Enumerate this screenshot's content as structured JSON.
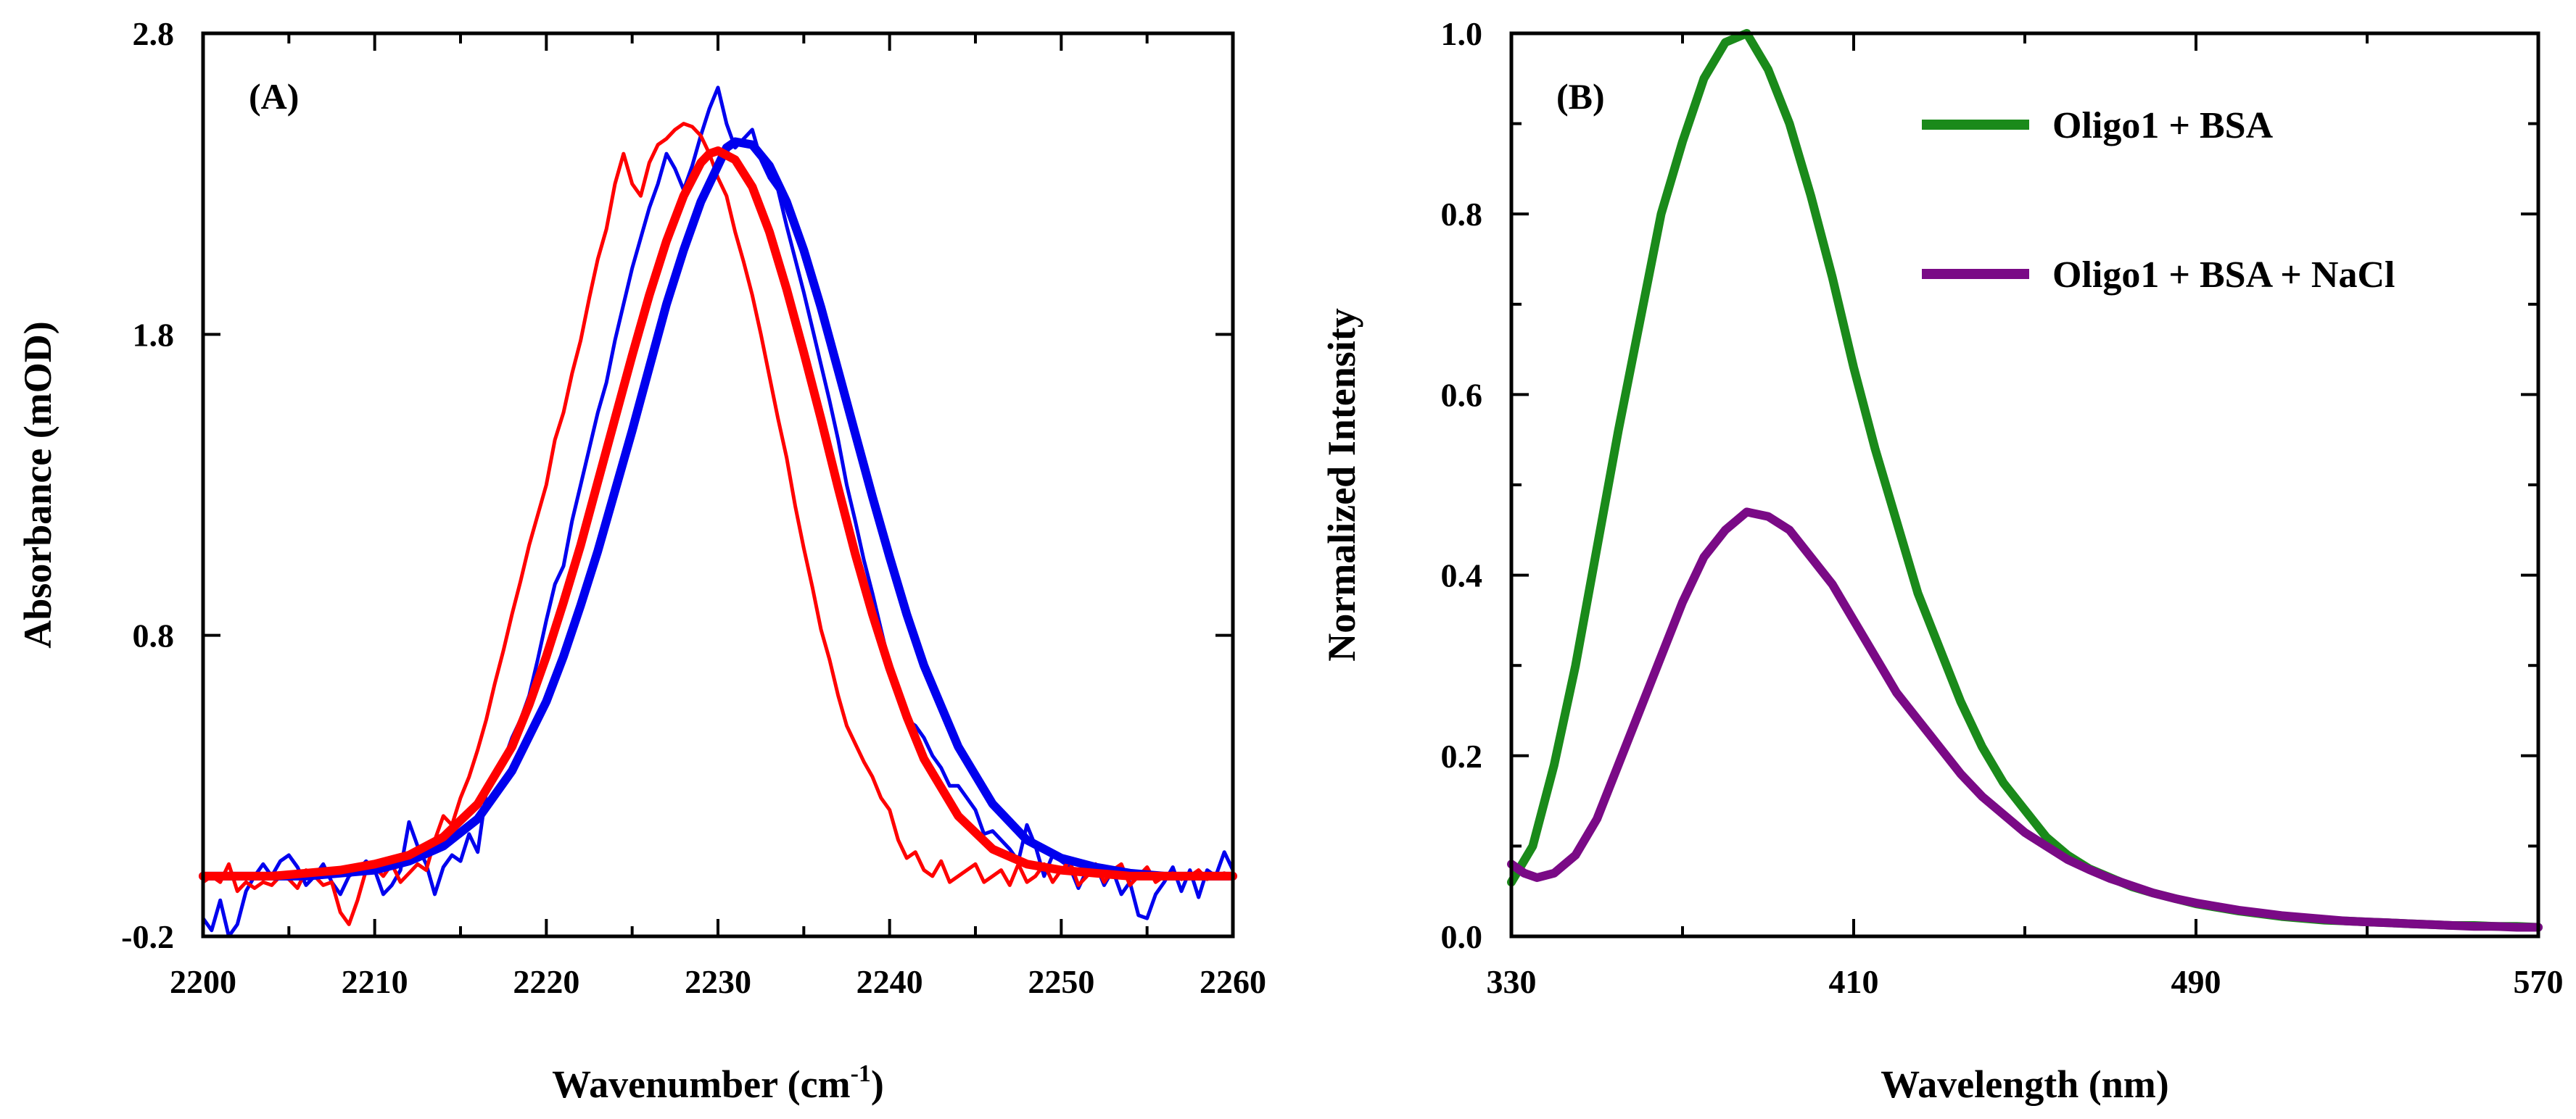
{
  "chart_data": [
    {
      "type": "line",
      "panel_label": "(A)",
      "xlabel": "Wavenumber (cm",
      "xlabel_sup": "-1",
      "xlabel_end": ")",
      "ylabel": "Absorbance (mOD)",
      "xlim": [
        2200,
        2260
      ],
      "ylim": [
        -0.2,
        2.8
      ],
      "x_ticks": [
        2200,
        2210,
        2220,
        2230,
        2240,
        2250,
        2260
      ],
      "x_tick_labels": [
        "2200",
        "2210",
        "2220",
        "2230",
        "2240",
        "2250",
        "2260"
      ],
      "y_ticks": [
        -0.2,
        0.8,
        1.8,
        2.8
      ],
      "y_tick_labels": [
        "-0.2",
        "0.8",
        "1.8",
        "2.8"
      ],
      "series": [
        {
          "name": "blue data",
          "color": "#0000ee",
          "style": "thin",
          "x": [
            2200.0,
            2200.5,
            2201.0,
            2201.5,
            2202.0,
            2202.5,
            2203.0,
            2203.5,
            2204.0,
            2204.5,
            2205.0,
            2205.5,
            2206.0,
            2206.5,
            2207.0,
            2207.5,
            2208.0,
            2208.5,
            2209.0,
            2209.5,
            2210.0,
            2210.5,
            2211.0,
            2211.5,
            2212.0,
            2212.5,
            2213.0,
            2213.5,
            2214.0,
            2214.5,
            2215.0,
            2215.5,
            2216.0,
            2216.5,
            2217.0,
            2217.5,
            2218.0,
            2218.5,
            2219.0,
            2219.5,
            2220.0,
            2220.5,
            2221.0,
            2221.5,
            2222.0,
            2222.5,
            2223.0,
            2223.5,
            2224.0,
            2224.5,
            2225.0,
            2225.5,
            2226.0,
            2226.5,
            2227.0,
            2227.5,
            2228.0,
            2228.5,
            2229.0,
            2229.5,
            2230.0,
            2230.5,
            2231.0,
            2231.5,
            2232.0,
            2232.5,
            2233.0,
            2233.5,
            2234.0,
            2234.5,
            2235.0,
            2235.5,
            2236.0,
            2236.5,
            2237.0,
            2237.5,
            2238.0,
            2238.5,
            2239.0,
            2239.5,
            2240.0,
            2240.5,
            2241.0,
            2241.5,
            2242.0,
            2242.5,
            2243.0,
            2243.5,
            2244.0,
            2244.5,
            2245.0,
            2245.5,
            2246.0,
            2246.5,
            2247.0,
            2247.5,
            2248.0,
            2248.5,
            2249.0,
            2249.5,
            2250.0,
            2250.5,
            2251.0,
            2251.5,
            2252.0,
            2252.5,
            2253.0,
            2253.5,
            2254.0,
            2254.5,
            2255.0,
            2255.5,
            2256.0,
            2256.5,
            2257.0,
            2257.5,
            2258.0,
            2258.5,
            2259.0,
            2259.5,
            2260.0
          ],
          "y": [
            -0.14,
            -0.18,
            -0.08,
            -0.2,
            -0.16,
            -0.05,
            0.0,
            0.04,
            0.0,
            0.05,
            0.07,
            0.03,
            -0.03,
            0.0,
            0.04,
            -0.02,
            -0.06,
            0.0,
            0.02,
            0.05,
            0.02,
            -0.06,
            -0.03,
            0.02,
            0.18,
            0.1,
            0.04,
            -0.06,
            0.03,
            0.07,
            0.05,
            0.14,
            0.08,
            0.28,
            0.32,
            0.38,
            0.46,
            0.52,
            0.6,
            0.72,
            0.85,
            0.97,
            1.03,
            1.18,
            1.3,
            1.42,
            1.54,
            1.64,
            1.78,
            1.9,
            2.02,
            2.12,
            2.22,
            2.3,
            2.4,
            2.35,
            2.28,
            2.36,
            2.46,
            2.55,
            2.62,
            2.5,
            2.42,
            2.45,
            2.48,
            2.38,
            2.32,
            2.28,
            2.16,
            2.05,
            1.94,
            1.82,
            1.7,
            1.58,
            1.45,
            1.3,
            1.18,
            1.05,
            0.94,
            0.82,
            0.7,
            0.6,
            0.52,
            0.5,
            0.46,
            0.4,
            0.36,
            0.3,
            0.3,
            0.26,
            0.22,
            0.14,
            0.15,
            0.12,
            0.09,
            0.05,
            0.17,
            0.1,
            0.0,
            0.07,
            0.05,
            0.03,
            -0.04,
            0.02,
            0.04,
            -0.03,
            0.02,
            -0.06,
            -0.02,
            -0.13,
            -0.14,
            -0.06,
            -0.02,
            0.03,
            -0.05,
            0.02,
            -0.07,
            0.02,
            0.0,
            0.08,
            0.02
          ]
        },
        {
          "name": "red data",
          "color": "#ff0000",
          "style": "thin",
          "x": [
            2200.0,
            2200.5,
            2201.0,
            2201.5,
            2202.0,
            2202.5,
            2203.0,
            2203.5,
            2204.0,
            2204.5,
            2205.0,
            2205.5,
            2206.0,
            2206.5,
            2207.0,
            2207.5,
            2208.0,
            2208.5,
            2209.0,
            2209.5,
            2210.0,
            2210.5,
            2211.0,
            2211.5,
            2212.0,
            2212.5,
            2213.0,
            2213.5,
            2214.0,
            2214.5,
            2215.0,
            2215.5,
            2216.0,
            2216.5,
            2217.0,
            2217.5,
            2218.0,
            2218.5,
            2219.0,
            2219.5,
            2220.0,
            2220.5,
            2221.0,
            2221.5,
            2222.0,
            2222.5,
            2223.0,
            2223.5,
            2224.0,
            2224.5,
            2225.0,
            2225.5,
            2226.0,
            2226.5,
            2227.0,
            2227.5,
            2228.0,
            2228.5,
            2229.0,
            2229.5,
            2230.0,
            2230.5,
            2231.0,
            2231.5,
            2232.0,
            2232.5,
            2233.0,
            2233.5,
            2234.0,
            2234.5,
            2235.0,
            2235.5,
            2236.0,
            2236.5,
            2237.0,
            2237.5,
            2238.0,
            2238.5,
            2239.0,
            2239.5,
            2240.0,
            2240.5,
            2241.0,
            2241.5,
            2242.0,
            2242.5,
            2243.0,
            2243.5,
            2244.0,
            2244.5,
            2245.0,
            2245.5,
            2246.0,
            2246.5,
            2247.0,
            2247.5,
            2248.0,
            2248.5,
            2249.0,
            2249.5,
            2250.0,
            2250.5,
            2251.0,
            2251.5,
            2252.0,
            2252.5,
            2253.0,
            2253.5,
            2254.0,
            2254.5,
            2255.0,
            2255.5,
            2256.0,
            2256.5,
            2257.0,
            2257.5,
            2258.0,
            2258.5,
            2259.0,
            2259.5,
            2260.0
          ],
          "y": [
            -0.02,
            0.0,
            -0.02,
            0.04,
            -0.05,
            -0.02,
            -0.04,
            -0.02,
            -0.03,
            0.0,
            -0.01,
            -0.04,
            0.02,
            0.0,
            -0.03,
            -0.02,
            -0.12,
            -0.16,
            -0.08,
            0.02,
            0.03,
            0.0,
            0.04,
            -0.02,
            0.01,
            0.04,
            0.02,
            0.12,
            0.2,
            0.17,
            0.26,
            0.33,
            0.42,
            0.52,
            0.64,
            0.75,
            0.87,
            0.98,
            1.1,
            1.2,
            1.3,
            1.45,
            1.54,
            1.67,
            1.78,
            1.92,
            2.05,
            2.15,
            2.3,
            2.4,
            2.3,
            2.26,
            2.37,
            2.43,
            2.45,
            2.48,
            2.5,
            2.49,
            2.46,
            2.4,
            2.32,
            2.26,
            2.14,
            2.04,
            1.93,
            1.8,
            1.66,
            1.52,
            1.39,
            1.23,
            1.09,
            0.96,
            0.82,
            0.72,
            0.6,
            0.5,
            0.44,
            0.38,
            0.33,
            0.26,
            0.22,
            0.12,
            0.06,
            0.08,
            0.02,
            0.0,
            0.05,
            -0.02,
            0.0,
            0.02,
            0.04,
            -0.02,
            0.0,
            0.02,
            -0.03,
            0.04,
            -0.02,
            0.0,
            0.04,
            -0.02,
            0.02,
            0.05,
            -0.03,
            0.0,
            0.04,
            -0.02,
            0.02,
            0.04,
            -0.03,
            0.0,
            0.03,
            -0.02,
            0.0,
            0.01,
            -0.01,
            0.0,
            0.02,
            -0.01,
            0.0,
            0.01,
            0.0
          ]
        },
        {
          "name": "blue fit",
          "color": "#0000ee",
          "style": "thick",
          "x": [
            2200,
            2202,
            2204,
            2206,
            2208,
            2210,
            2212,
            2214,
            2216,
            2218,
            2220,
            2221,
            2222,
            2223,
            2224,
            2225,
            2226,
            2227,
            2228,
            2229,
            2230,
            2230.5,
            2231,
            2232,
            2233,
            2234,
            2235,
            2236,
            2237,
            2238,
            2239,
            2240,
            2241,
            2242,
            2244,
            2246,
            2248,
            2250,
            2252,
            2254,
            2256,
            2258,
            2260
          ],
          "y": [
            0.0,
            0.0,
            0.0,
            0.0,
            0.01,
            0.02,
            0.05,
            0.1,
            0.19,
            0.35,
            0.58,
            0.73,
            0.9,
            1.08,
            1.28,
            1.48,
            1.69,
            1.9,
            2.08,
            2.24,
            2.36,
            2.42,
            2.44,
            2.43,
            2.36,
            2.24,
            2.08,
            1.89,
            1.68,
            1.47,
            1.26,
            1.06,
            0.87,
            0.7,
            0.43,
            0.24,
            0.12,
            0.06,
            0.03,
            0.01,
            0.0,
            0.0,
            0.0
          ]
        },
        {
          "name": "red fit",
          "color": "#ff0000",
          "style": "thick",
          "x": [
            2200,
            2202,
            2204,
            2206,
            2208,
            2210,
            2212,
            2214,
            2216,
            2218,
            2219,
            2220,
            2221,
            2222,
            2223,
            2224,
            2225,
            2226,
            2227,
            2228,
            2229,
            2229.5,
            2230,
            2231,
            2232,
            2233,
            2234,
            2235,
            2236,
            2237,
            2238,
            2239,
            2240,
            2241,
            2242,
            2244,
            2246,
            2248,
            2250,
            2252,
            2254,
            2256,
            2258,
            2260
          ],
          "y": [
            0.0,
            0.0,
            0.0,
            0.01,
            0.02,
            0.04,
            0.07,
            0.13,
            0.24,
            0.43,
            0.57,
            0.73,
            0.91,
            1.1,
            1.31,
            1.52,
            1.73,
            1.93,
            2.11,
            2.26,
            2.37,
            2.4,
            2.41,
            2.38,
            2.29,
            2.14,
            1.95,
            1.74,
            1.52,
            1.29,
            1.07,
            0.87,
            0.69,
            0.53,
            0.39,
            0.2,
            0.09,
            0.04,
            0.02,
            0.01,
            0.0,
            0.0,
            0.0,
            0.0
          ]
        }
      ]
    },
    {
      "type": "line",
      "panel_label": "(B)",
      "xlabel": "Wavelength (nm)",
      "ylabel": "Normalized Intensity",
      "xlim": [
        330,
        570
      ],
      "ylim": [
        0.0,
        1.0
      ],
      "x_ticks": [
        330,
        410,
        490,
        570
      ],
      "x_tick_labels": [
        "330",
        "410",
        "490",
        "570"
      ],
      "y_ticks": [
        0.0,
        0.2,
        0.4,
        0.6,
        0.8,
        1.0
      ],
      "y_tick_labels": [
        "0.0",
        "0.2",
        "0.4",
        "0.6",
        "0.8",
        "1.0"
      ],
      "legend_position": "top-right",
      "series": [
        {
          "name": "Oligo1 + BSA",
          "color": "#1a8a1a",
          "x": [
            330,
            335,
            340,
            345,
            350,
            355,
            360,
            365,
            370,
            375,
            380,
            385,
            390,
            395,
            400,
            405,
            410,
            415,
            420,
            425,
            430,
            435,
            440,
            445,
            450,
            455,
            460,
            465,
            470,
            475,
            480,
            485,
            490,
            495,
            500,
            505,
            510,
            515,
            520,
            525,
            530,
            535,
            540,
            545,
            550,
            555,
            560,
            565,
            570
          ],
          "y": [
            0.06,
            0.1,
            0.19,
            0.3,
            0.43,
            0.56,
            0.68,
            0.8,
            0.88,
            0.95,
            0.99,
            1.0,
            0.96,
            0.9,
            0.82,
            0.73,
            0.63,
            0.54,
            0.46,
            0.38,
            0.32,
            0.26,
            0.21,
            0.17,
            0.14,
            0.11,
            0.09,
            0.075,
            0.065,
            0.055,
            0.048,
            0.042,
            0.036,
            0.032,
            0.028,
            0.025,
            0.022,
            0.02,
            0.018,
            0.017,
            0.016,
            0.015,
            0.014,
            0.013,
            0.012,
            0.012,
            0.011,
            0.011,
            0.01
          ]
        },
        {
          "name": "Oligo1 + BSA + NaCl",
          "color": "#7a0a86",
          "x": [
            330,
            333,
            336,
            340,
            345,
            350,
            355,
            360,
            365,
            370,
            375,
            380,
            385,
            390,
            395,
            400,
            405,
            410,
            415,
            420,
            425,
            430,
            435,
            440,
            445,
            450,
            455,
            460,
            465,
            470,
            475,
            480,
            485,
            490,
            495,
            500,
            505,
            510,
            515,
            520,
            525,
            530,
            535,
            540,
            545,
            550,
            555,
            560,
            565,
            570
          ],
          "y": [
            0.08,
            0.07,
            0.065,
            0.07,
            0.09,
            0.13,
            0.19,
            0.25,
            0.31,
            0.37,
            0.42,
            0.45,
            0.47,
            0.465,
            0.45,
            0.42,
            0.39,
            0.35,
            0.31,
            0.27,
            0.24,
            0.21,
            0.18,
            0.155,
            0.135,
            0.115,
            0.1,
            0.085,
            0.074,
            0.064,
            0.056,
            0.048,
            0.042,
            0.037,
            0.033,
            0.029,
            0.026,
            0.023,
            0.021,
            0.019,
            0.017,
            0.016,
            0.015,
            0.014,
            0.013,
            0.012,
            0.011,
            0.011,
            0.01,
            0.01
          ]
        }
      ]
    }
  ]
}
